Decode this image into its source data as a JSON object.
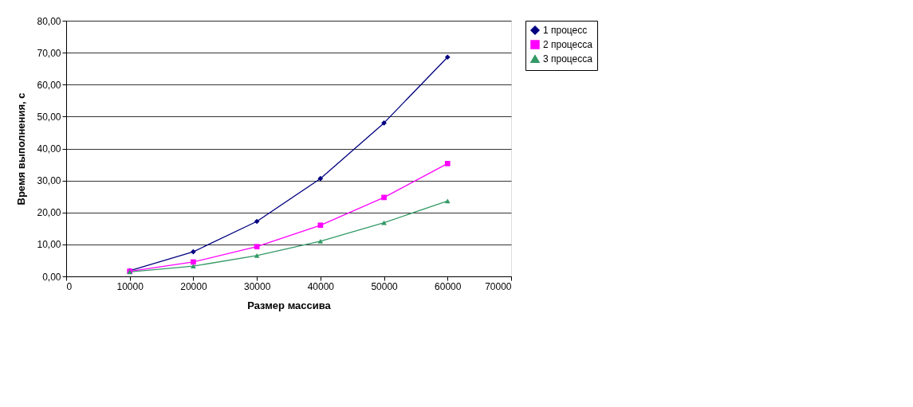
{
  "chart_data": {
    "type": "line",
    "xlabel": "Размер массива",
    "ylabel": "Время выполнения, с",
    "x": [
      10000,
      20000,
      30000,
      40000,
      50000,
      60000
    ],
    "series": [
      {
        "name": "1 процесс",
        "color": "#000080",
        "marker": "diamond",
        "values": [
          1.8,
          7.7,
          17.2,
          30.6,
          48.0,
          68.6
        ]
      },
      {
        "name": "2 процесса",
        "color": "#ff00ff",
        "marker": "square",
        "values": [
          1.6,
          4.5,
          9.3,
          16.0,
          24.7,
          35.3
        ]
      },
      {
        "name": "3 процесса",
        "color": "#339966",
        "marker": "triangle",
        "values": [
          1.4,
          3.2,
          6.5,
          11.0,
          16.8,
          23.6
        ]
      }
    ],
    "xlim": [
      0,
      70000
    ],
    "xticks": [
      0,
      10000,
      20000,
      30000,
      40000,
      50000,
      60000,
      70000
    ],
    "ylim": [
      0,
      80
    ],
    "yticks": [
      {
        "value": 0,
        "label": "0,00"
      },
      {
        "value": 10,
        "label": "10,00"
      },
      {
        "value": 20,
        "label": "20,00"
      },
      {
        "value": 30,
        "label": "30,00"
      },
      {
        "value": 40,
        "label": "40,00"
      },
      {
        "value": 50,
        "label": "50,00"
      },
      {
        "value": 60,
        "label": "60,00"
      },
      {
        "value": 70,
        "label": "70,00"
      },
      {
        "value": 80,
        "label": "80,00"
      }
    ],
    "grid": "y",
    "legend": "right",
    "line_style": "solid"
  }
}
